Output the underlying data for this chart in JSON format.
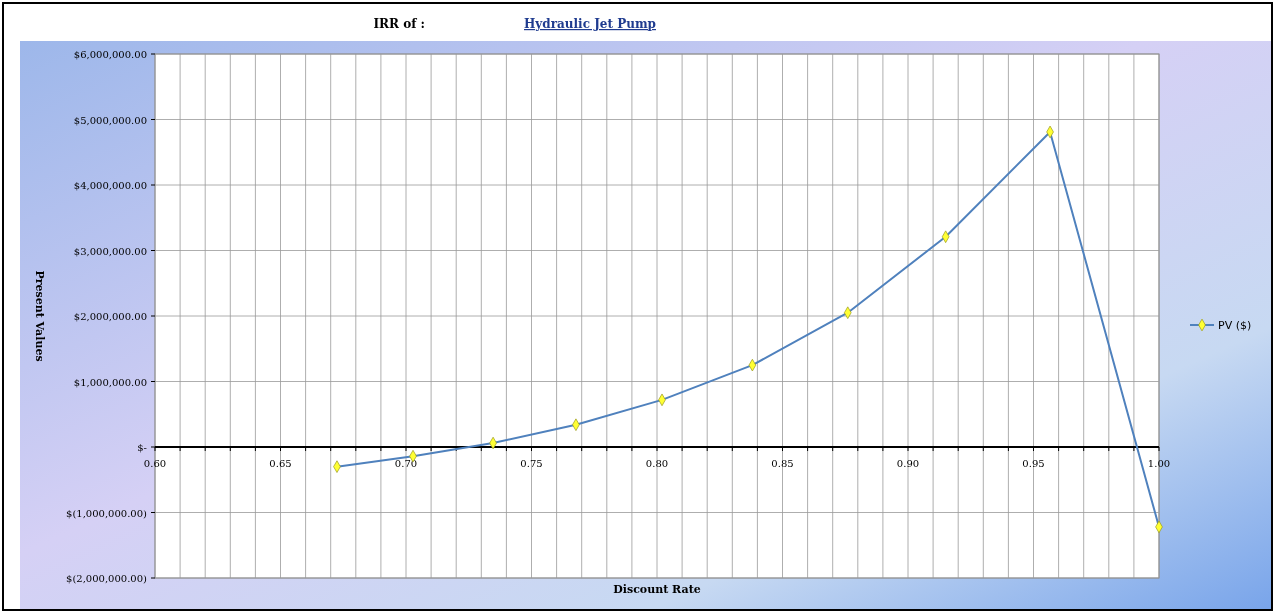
{
  "chart_data": {
    "type": "line",
    "title": "IRR of :",
    "subtitle": "Hydraulic Jet Pump",
    "xlabel": "Discount Rate",
    "ylabel": "Present Values",
    "x": [
      0.6725,
      0.7028,
      0.7347,
      0.7677,
      0.802,
      0.838,
      0.876,
      0.915,
      0.9566,
      1.0
    ],
    "series": [
      {
        "name": "PV ($)",
        "color": "#4f81bd",
        "values": [
          -300000,
          -140000,
          60000,
          340000,
          720000,
          1250000,
          2050000,
          3210000,
          4810000,
          -1220000
        ]
      }
    ],
    "marker": "diamond",
    "legend": "right",
    "grid": true,
    "xlim": [
      0.6,
      1.0
    ],
    "xticks": [
      {
        "value": 0.6,
        "label": "0.60"
      },
      {
        "value": 0.61,
        "label": null
      },
      {
        "value": 0.62,
        "label": null
      },
      {
        "value": 0.63,
        "label": null
      },
      {
        "value": 0.64,
        "label": null
      },
      {
        "value": 0.65,
        "label": "0.65"
      },
      {
        "value": 0.66,
        "label": null
      },
      {
        "value": 0.67,
        "label": null
      },
      {
        "value": 0.68,
        "label": null
      },
      {
        "value": 0.69,
        "label": null
      },
      {
        "value": 0.7,
        "label": "0.70"
      },
      {
        "value": 0.71,
        "label": null
      },
      {
        "value": 0.72,
        "label": null
      },
      {
        "value": 0.73,
        "label": null
      },
      {
        "value": 0.74,
        "label": null
      },
      {
        "value": 0.75,
        "label": "0.75"
      },
      {
        "value": 0.76,
        "label": null
      },
      {
        "value": 0.77,
        "label": null
      },
      {
        "value": 0.78,
        "label": null
      },
      {
        "value": 0.79,
        "label": null
      },
      {
        "value": 0.8,
        "label": "0.80"
      },
      {
        "value": 0.81,
        "label": null
      },
      {
        "value": 0.82,
        "label": null
      },
      {
        "value": 0.83,
        "label": null
      },
      {
        "value": 0.84,
        "label": null
      },
      {
        "value": 0.85,
        "label": "0.85"
      },
      {
        "value": 0.86,
        "label": null
      },
      {
        "value": 0.87,
        "label": null
      },
      {
        "value": 0.88,
        "label": null
      },
      {
        "value": 0.89,
        "label": null
      },
      {
        "value": 0.9,
        "label": "0.90"
      },
      {
        "value": 0.91,
        "label": null
      },
      {
        "value": 0.92,
        "label": null
      },
      {
        "value": 0.93,
        "label": null
      },
      {
        "value": 0.94,
        "label": null
      },
      {
        "value": 0.95,
        "label": "0.95"
      },
      {
        "value": 0.96,
        "label": null
      },
      {
        "value": 0.97,
        "label": null
      },
      {
        "value": 0.98,
        "label": null
      },
      {
        "value": 0.99,
        "label": null
      },
      {
        "value": 1.0,
        "label": "1.00"
      }
    ],
    "ylim": [
      -2000000,
      6000000
    ],
    "yticks": [
      {
        "value": -2000000,
        "label": "$(2,000,000.00)"
      },
      {
        "value": -1000000,
        "label": "$(1,000,000.00)"
      },
      {
        "value": 0,
        "label": "$-"
      },
      {
        "value": 1000000,
        "label": "$1,000,000.00"
      },
      {
        "value": 2000000,
        "label": "$2,000,000.00"
      },
      {
        "value": 3000000,
        "label": "$3,000,000.00"
      },
      {
        "value": 4000000,
        "label": "$4,000,000.00"
      },
      {
        "value": 5000000,
        "label": "$5,000,000.00"
      },
      {
        "value": 6000000,
        "label": "$6,000,000.00"
      }
    ]
  }
}
